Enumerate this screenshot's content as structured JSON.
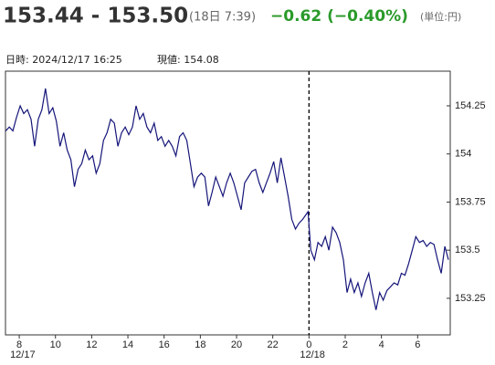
{
  "header": {
    "price": "153.44 - 153.50",
    "time": "(18日 7:39)",
    "change": "−0.62 (−0.40%)",
    "unit": "(単位:円)"
  },
  "info": {
    "datetime": "日時: 2024/12/17  16:25",
    "current": "現値: 154.08"
  },
  "chart_data": {
    "type": "line",
    "color": "#15157a",
    "x": [
      7.25,
      7.45,
      7.65,
      7.85,
      8.05,
      8.25,
      8.45,
      8.65,
      8.85,
      9.05,
      9.25,
      9.45,
      9.65,
      9.85,
      10.05,
      10.25,
      10.45,
      10.65,
      10.85,
      11.05,
      11.25,
      11.45,
      11.65,
      11.85,
      12.05,
      12.25,
      12.45,
      12.65,
      12.85,
      13.05,
      13.25,
      13.45,
      13.65,
      13.85,
      14.05,
      14.25,
      14.45,
      14.65,
      14.85,
      15.05,
      15.25,
      15.45,
      15.65,
      15.85,
      16.05,
      16.25,
      16.45,
      16.65,
      16.85,
      17.05,
      17.25,
      17.45,
      17.65,
      17.85,
      18.05,
      18.25,
      18.45,
      18.65,
      18.85,
      19.05,
      19.25,
      19.45,
      19.65,
      19.85,
      20.05,
      20.25,
      20.45,
      20.65,
      20.85,
      21.05,
      21.25,
      21.45,
      21.65,
      21.85,
      22.05,
      22.25,
      22.45,
      22.65,
      22.85,
      23.05,
      23.25,
      23.45,
      23.65,
      23.95,
      24.1,
      24.3,
      24.5,
      24.7,
      24.9,
      25.1,
      25.3,
      25.5,
      25.7,
      25.9,
      26.1,
      26.3,
      26.5,
      26.7,
      26.9,
      27.1,
      27.3,
      27.5,
      27.7,
      27.9,
      28.1,
      28.3,
      28.5,
      28.7,
      28.9,
      29.1,
      29.3,
      29.5,
      29.7,
      29.9,
      30.1,
      30.3,
      30.5,
      30.7,
      30.9,
      31.1,
      31.3,
      31.5,
      31.7
    ],
    "values": [
      154.12,
      154.14,
      154.12,
      154.19,
      154.25,
      154.21,
      154.23,
      154.18,
      154.04,
      154.18,
      154.23,
      154.34,
      154.21,
      154.24,
      154.17,
      154.04,
      154.11,
      154.02,
      153.97,
      153.83,
      153.92,
      153.95,
      154.02,
      153.97,
      153.99,
      153.9,
      153.95,
      154.07,
      154.11,
      154.18,
      154.16,
      154.04,
      154.11,
      154.14,
      154.1,
      154.14,
      154.25,
      154.18,
      154.21,
      154.14,
      154.11,
      154.16,
      154.07,
      154.09,
      154.04,
      154.07,
      154.04,
      153.99,
      154.09,
      154.11,
      154.07,
      153.95,
      153.83,
      153.88,
      153.9,
      153.88,
      153.73,
      153.8,
      153.88,
      153.83,
      153.78,
      153.85,
      153.9,
      153.85,
      153.78,
      153.71,
      153.85,
      153.88,
      153.91,
      153.92,
      153.85,
      153.8,
      153.85,
      153.9,
      153.96,
      153.85,
      153.98,
      153.88,
      153.78,
      153.66,
      153.61,
      153.64,
      153.66,
      153.7,
      153.5,
      153.45,
      153.54,
      153.52,
      153.57,
      153.5,
      153.62,
      153.59,
      153.54,
      153.45,
      153.28,
      153.35,
      153.28,
      153.33,
      153.26,
      153.33,
      153.38,
      153.28,
      153.19,
      153.28,
      153.24,
      153.29,
      153.31,
      153.33,
      153.32,
      153.38,
      153.37,
      153.43,
      153.5,
      153.57,
      153.54,
      153.55,
      153.52,
      153.54,
      153.53,
      153.45,
      153.38,
      153.52,
      153.45
    ],
    "xlim": [
      7.24,
      31.8
    ],
    "ylim": [
      153.06,
      154.43
    ],
    "xticks": [
      8,
      10,
      12,
      14,
      16,
      18,
      20,
      22,
      {
        "value": 24,
        "label": "0"
      },
      {
        "value": 26,
        "label": "2"
      },
      {
        "value": 28,
        "label": "4"
      },
      {
        "value": 30,
        "label": "6"
      }
    ],
    "date_labels": [
      {
        "value": 8,
        "label": "12/17"
      },
      {
        "value": 24,
        "label": "12/18"
      }
    ],
    "divider": 24,
    "yticks": [
      153.25,
      153.5,
      153.75,
      154,
      154.25
    ]
  }
}
